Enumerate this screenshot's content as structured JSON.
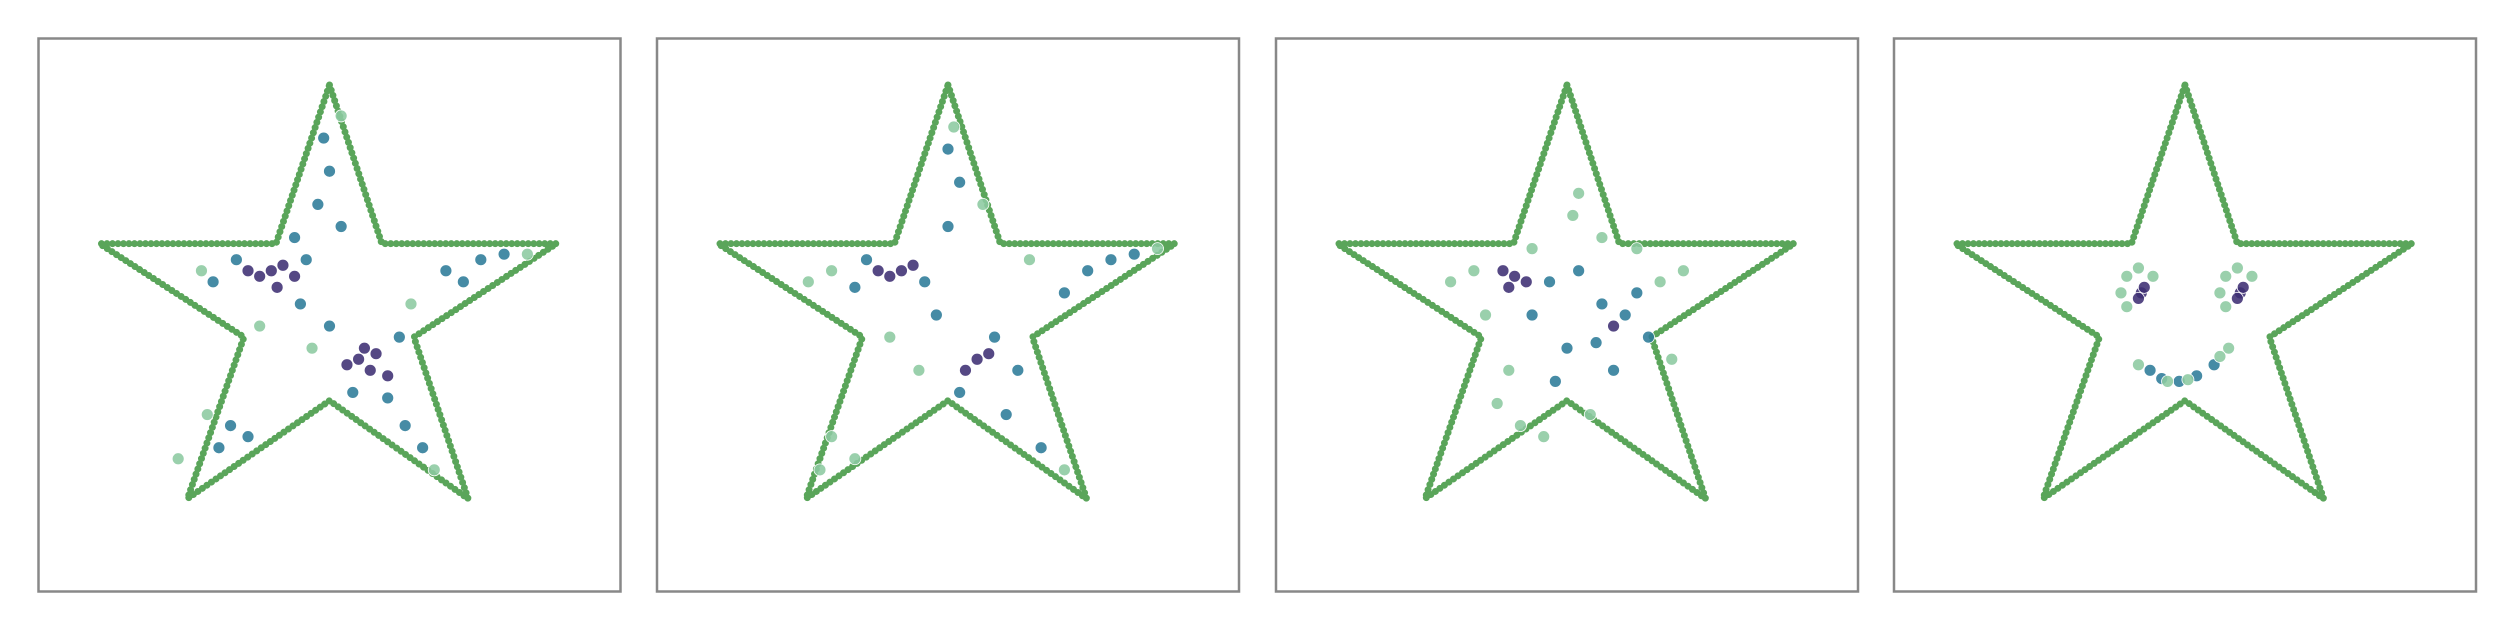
{
  "chart_data": [
    {
      "type": "scatter",
      "xlim": [
        0,
        100
      ],
      "ylim": [
        0,
        100
      ],
      "outline": {
        "color": "#5aa55a",
        "x": [
          50,
          59,
          89,
          64.5,
          73.8,
          50,
          25.6,
          35.3,
          10.5,
          40.8,
          50
        ],
        "y": [
          91.6,
          62.9,
          62.9,
          46,
          16.8,
          34.5,
          16.8,
          46,
          62.9,
          62.9,
          91.6
        ]
      },
      "series": [
        {
          "color": "#3e2f73",
          "x": [
            40,
            38,
            42,
            36,
            41,
            44,
            55,
            57,
            58,
            53,
            60,
            56
          ],
          "y": [
            58,
            57,
            59,
            58,
            55,
            57,
            42,
            40,
            43,
            41,
            39,
            44
          ]
        },
        {
          "color": "#2c7b98",
          "x": [
            34,
            46,
            48,
            50,
            49,
            52,
            45,
            50,
            62,
            60,
            63,
            66,
            54,
            33,
            36,
            31,
            70,
            76,
            80,
            73,
            30,
            44
          ],
          "y": [
            60,
            60,
            70,
            76,
            82,
            66,
            52,
            48,
            46,
            35,
            30,
            26,
            36,
            30,
            28,
            26,
            58,
            60,
            61,
            56,
            56,
            64
          ]
        },
        {
          "color": "#8ccaa0",
          "x": [
            28,
            52,
            68,
            24,
            84,
            38,
            64,
            47,
            29
          ],
          "y": [
            58,
            86,
            22,
            24,
            61,
            48,
            52,
            44,
            32
          ]
        }
      ]
    },
    {
      "type": "scatter",
      "xlim": [
        0,
        100
      ],
      "ylim": [
        0,
        100
      ],
      "outline": {
        "color": "#5aa55a",
        "x": [
          50,
          59,
          89,
          64.5,
          73.8,
          50,
          25.6,
          35.3,
          10.5,
          40.8,
          50
        ],
        "y": [
          91.6,
          62.9,
          62.9,
          46,
          16.8,
          34.5,
          16.8,
          46,
          62.9,
          62.9,
          91.6
        ]
      },
      "series": [
        {
          "color": "#3e2f73",
          "x": [
            42,
            40,
            44,
            38,
            55,
            53,
            57
          ],
          "y": [
            58,
            57,
            59,
            58,
            42,
            40,
            43
          ]
        },
        {
          "color": "#2c7b98",
          "x": [
            36,
            46,
            50,
            52,
            50,
            48,
            58,
            62,
            60,
            66,
            70,
            74,
            78,
            82,
            34,
            52
          ],
          "y": [
            60,
            56,
            66,
            74,
            80,
            50,
            46,
            40,
            32,
            26,
            54,
            58,
            60,
            61,
            55,
            36
          ]
        },
        {
          "color": "#8ccaa0",
          "x": [
            30,
            51,
            70,
            30,
            34,
            28,
            86,
            40,
            64,
            45,
            26,
            56
          ],
          "y": [
            58,
            84,
            22,
            28,
            24,
            22,
            62,
            46,
            60,
            40,
            56,
            70
          ]
        }
      ]
    },
    {
      "type": "scatter",
      "xlim": [
        0,
        100
      ],
      "ylim": [
        0,
        100
      ],
      "outline": {
        "color": "#5aa55a",
        "x": [
          50,
          59,
          89,
          64.5,
          73.8,
          50,
          25.6,
          35.3,
          10.5,
          40.8,
          50
        ],
        "y": [
          91.6,
          62.9,
          62.9,
          46,
          16.8,
          34.5,
          16.8,
          46,
          62.9,
          62.9,
          91.6
        ]
      },
      "series": [
        {
          "color": "#3e2f73",
          "x": [
            41,
            39,
            43,
            40,
            58
          ],
          "y": [
            57,
            58,
            56,
            55,
            48
          ]
        },
        {
          "color": "#2c7b98",
          "x": [
            47,
            52,
            56,
            60,
            62,
            55,
            50,
            48,
            58,
            64,
            44
          ],
          "y": [
            56,
            58,
            52,
            50,
            54,
            45,
            44,
            38,
            40,
            46,
            50
          ]
        },
        {
          "color": "#8ccaa0",
          "x": [
            34,
            36,
            40,
            38,
            42,
            46,
            54,
            66,
            70,
            62,
            51,
            52,
            56,
            30,
            44,
            68
          ],
          "y": [
            58,
            50,
            40,
            34,
            30,
            28,
            32,
            56,
            58,
            62,
            68,
            72,
            64,
            56,
            62,
            42
          ]
        }
      ]
    },
    {
      "type": "scatter",
      "xlim": [
        0,
        100
      ],
      "ylim": [
        0,
        100
      ],
      "outline": {
        "color": "#5aa55a",
        "x": [
          50,
          59,
          89,
          64.5,
          73.8,
          50,
          25.6,
          35.3,
          10.5,
          40.8,
          50
        ],
        "y": [
          91.6,
          62.9,
          62.9,
          46,
          16.8,
          34.5,
          16.8,
          46,
          62.9,
          62.9,
          91.6
        ]
      },
      "series": [
        {
          "color": "#3e2f73",
          "x": [
            42.5,
            43,
            59.5,
            60,
            42,
            59
          ],
          "y": [
            54,
            55,
            54,
            55,
            53,
            53
          ]
        },
        {
          "color": "#2c7b98",
          "x": [
            44,
            46,
            49,
            52,
            55
          ],
          "y": [
            40,
            38.5,
            38,
            39,
            41
          ]
        },
        {
          "color": "#8ccaa0",
          "x": [
            39,
            40,
            42,
            44.5,
            40,
            56,
            57,
            59,
            61.5,
            57,
            42,
            57.5,
            56,
            47,
            50.5
          ],
          "y": [
            54,
            57,
            58.5,
            57,
            51.5,
            54,
            57,
            58.5,
            57,
            51.5,
            41,
            44,
            42.5,
            38,
            38.3
          ]
        }
      ]
    }
  ]
}
